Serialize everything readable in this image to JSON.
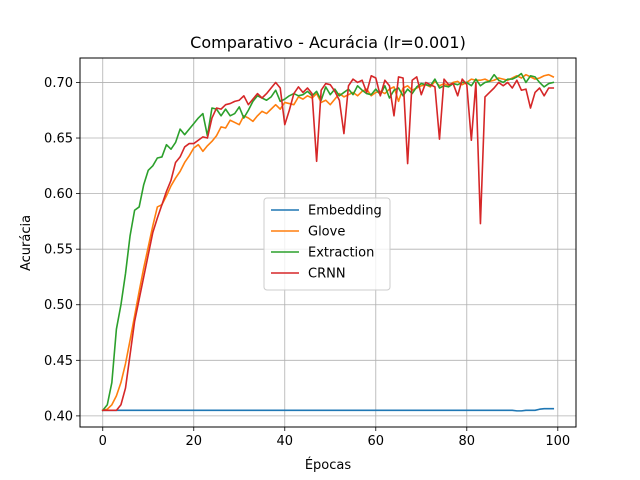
{
  "chart_data": {
    "type": "line",
    "title": "Comparativo - Acurácia (lr=0.001)",
    "xlabel": "Épocas",
    "ylabel": "Acurácia",
    "xlim": [
      -5,
      104
    ],
    "ylim": [
      0.39,
      0.722
    ],
    "xticks": [
      0,
      20,
      40,
      60,
      80,
      100
    ],
    "yticks": [
      0.4,
      0.45,
      0.5,
      0.55,
      0.6,
      0.65,
      0.7
    ],
    "xtick_labels": [
      "0",
      "20",
      "40",
      "60",
      "80",
      "100"
    ],
    "ytick_labels": [
      "0.40",
      "0.45",
      "0.50",
      "0.55",
      "0.60",
      "0.65",
      "0.70"
    ],
    "grid": true,
    "legend_position": "center",
    "series": [
      {
        "name": "Embedding",
        "color": "#1f77b4",
        "x": [
          0,
          10,
          20,
          30,
          40,
          50,
          60,
          70,
          80,
          90,
          91,
          92,
          93,
          94,
          95,
          96,
          97,
          98,
          99
        ],
        "y": [
          0.405,
          0.405,
          0.405,
          0.405,
          0.405,
          0.405,
          0.405,
          0.405,
          0.405,
          0.405,
          0.4045,
          0.4045,
          0.405,
          0.405,
          0.405,
          0.406,
          0.4065,
          0.4065,
          0.4065
        ]
      },
      {
        "name": "Glove",
        "color": "#ff7f0e",
        "x": [
          0,
          1,
          2,
          3,
          4,
          5,
          6,
          7,
          8,
          9,
          10,
          11,
          12,
          13,
          14,
          15,
          16,
          17,
          18,
          19,
          20,
          21,
          22,
          23,
          24,
          25,
          26,
          27,
          28,
          29,
          30,
          31,
          32,
          33,
          34,
          35,
          36,
          37,
          38,
          39,
          40,
          41,
          42,
          43,
          44,
          45,
          46,
          47,
          48,
          49,
          50,
          51,
          52,
          53,
          54,
          55,
          56,
          57,
          58,
          59,
          60,
          61,
          62,
          63,
          64,
          65,
          66,
          67,
          68,
          69,
          70,
          71,
          72,
          73,
          74,
          75,
          76,
          77,
          78,
          79,
          80,
          81,
          82,
          83,
          84,
          85,
          86,
          87,
          88,
          89,
          90,
          91,
          92,
          93,
          94,
          95,
          96,
          97,
          98,
          99
        ],
        "y": [
          0.405,
          0.406,
          0.41,
          0.418,
          0.43,
          0.447,
          0.468,
          0.49,
          0.512,
          0.533,
          0.552,
          0.571,
          0.588,
          0.59,
          0.598,
          0.607,
          0.614,
          0.62,
          0.628,
          0.634,
          0.641,
          0.644,
          0.638,
          0.643,
          0.647,
          0.652,
          0.66,
          0.659,
          0.666,
          0.664,
          0.662,
          0.67,
          0.668,
          0.665,
          0.67,
          0.674,
          0.672,
          0.676,
          0.68,
          0.676,
          0.682,
          0.681,
          0.68,
          0.687,
          0.685,
          0.688,
          0.686,
          0.69,
          0.682,
          0.684,
          0.68,
          0.685,
          0.69,
          0.687,
          0.689,
          0.691,
          0.688,
          0.692,
          0.694,
          0.688,
          0.691,
          0.692,
          0.69,
          0.694,
          0.696,
          0.683,
          0.695,
          0.697,
          0.693,
          0.695,
          0.697,
          0.698,
          0.696,
          0.701,
          0.697,
          0.699,
          0.697,
          0.7,
          0.701,
          0.698,
          0.7,
          0.703,
          0.702,
          0.702,
          0.703,
          0.701,
          0.702,
          0.704,
          0.703,
          0.702,
          0.704,
          0.706,
          0.704,
          0.707,
          0.705,
          0.703,
          0.704,
          0.706,
          0.707,
          0.705
        ]
      },
      {
        "name": "Extraction",
        "color": "#2ca02c",
        "x": [
          0,
          1,
          2,
          3,
          4,
          5,
          6,
          7,
          8,
          9,
          10,
          11,
          12,
          13,
          14,
          15,
          16,
          17,
          18,
          19,
          20,
          21,
          22,
          23,
          24,
          25,
          26,
          27,
          28,
          29,
          30,
          31,
          32,
          33,
          34,
          35,
          36,
          37,
          38,
          39,
          40,
          41,
          42,
          43,
          44,
          45,
          46,
          47,
          48,
          49,
          50,
          51,
          52,
          53,
          54,
          55,
          56,
          57,
          58,
          59,
          60,
          61,
          62,
          63,
          64,
          65,
          66,
          67,
          68,
          69,
          70,
          71,
          72,
          73,
          74,
          75,
          76,
          77,
          78,
          79,
          80,
          81,
          82,
          83,
          84,
          85,
          86,
          87,
          88,
          89,
          90,
          91,
          92,
          93,
          94,
          95,
          96,
          97,
          98,
          99
        ],
        "y": [
          0.405,
          0.41,
          0.43,
          0.478,
          0.5,
          0.528,
          0.562,
          0.585,
          0.588,
          0.608,
          0.621,
          0.625,
          0.632,
          0.633,
          0.644,
          0.64,
          0.646,
          0.658,
          0.653,
          0.658,
          0.663,
          0.668,
          0.672,
          0.652,
          0.677,
          0.676,
          0.67,
          0.676,
          0.67,
          0.672,
          0.678,
          0.668,
          0.675,
          0.683,
          0.688,
          0.686,
          0.684,
          0.687,
          0.693,
          0.683,
          0.685,
          0.688,
          0.69,
          0.688,
          0.689,
          0.692,
          0.688,
          0.692,
          0.684,
          0.696,
          0.689,
          0.694,
          0.688,
          0.691,
          0.694,
          0.689,
          0.697,
          0.693,
          0.69,
          0.689,
          0.694,
          0.689,
          0.697,
          0.686,
          0.693,
          0.695,
          0.688,
          0.694,
          0.69,
          0.696,
          0.699,
          0.698,
          0.697,
          0.703,
          0.695,
          0.697,
          0.696,
          0.699,
          0.698,
          0.7,
          0.7,
          0.697,
          0.703,
          0.697,
          0.7,
          0.701,
          0.707,
          0.702,
          0.7,
          0.703,
          0.703,
          0.705,
          0.708,
          0.7,
          0.706,
          0.705,
          0.7,
          0.696,
          0.699,
          0.7
        ]
      },
      {
        "name": "CRNN",
        "color": "#d62728",
        "x": [
          0,
          1,
          2,
          3,
          4,
          5,
          6,
          7,
          8,
          9,
          10,
          11,
          12,
          13,
          14,
          15,
          16,
          17,
          18,
          19,
          20,
          21,
          22,
          23,
          24,
          25,
          26,
          27,
          28,
          29,
          30,
          31,
          32,
          33,
          34,
          35,
          36,
          37,
          38,
          39,
          40,
          41,
          42,
          43,
          44,
          45,
          46,
          47,
          48,
          49,
          50,
          51,
          52,
          53,
          54,
          55,
          56,
          57,
          58,
          59,
          60,
          61,
          62,
          63,
          64,
          65,
          66,
          67,
          68,
          69,
          70,
          71,
          72,
          73,
          74,
          75,
          76,
          77,
          78,
          79,
          80,
          81,
          82,
          83,
          84,
          85,
          86,
          87,
          88,
          89,
          90,
          91,
          92,
          93,
          94,
          95,
          96,
          97,
          98,
          99
        ],
        "y": [
          0.405,
          0.405,
          0.405,
          0.405,
          0.41,
          0.425,
          0.455,
          0.485,
          0.505,
          0.525,
          0.545,
          0.565,
          0.578,
          0.59,
          0.602,
          0.612,
          0.628,
          0.633,
          0.642,
          0.645,
          0.645,
          0.648,
          0.651,
          0.65,
          0.668,
          0.677,
          0.676,
          0.68,
          0.681,
          0.683,
          0.684,
          0.688,
          0.68,
          0.685,
          0.69,
          0.686,
          0.69,
          0.695,
          0.7,
          0.695,
          0.662,
          0.675,
          0.69,
          0.696,
          0.691,
          0.695,
          0.69,
          0.629,
          0.693,
          0.699,
          0.698,
          0.692,
          0.684,
          0.654,
          0.697,
          0.703,
          0.7,
          0.702,
          0.691,
          0.706,
          0.704,
          0.688,
          0.702,
          0.697,
          0.67,
          0.705,
          0.704,
          0.627,
          0.702,
          0.705,
          0.689,
          0.7,
          0.698,
          0.696,
          0.649,
          0.703,
          0.698,
          0.699,
          0.688,
          0.703,
          0.698,
          0.648,
          0.7,
          0.573,
          0.687,
          0.691,
          0.695,
          0.7,
          0.697,
          0.7,
          0.695,
          0.702,
          0.693,
          0.694,
          0.677,
          0.691,
          0.695,
          0.688,
          0.695,
          0.695
        ]
      }
    ]
  }
}
